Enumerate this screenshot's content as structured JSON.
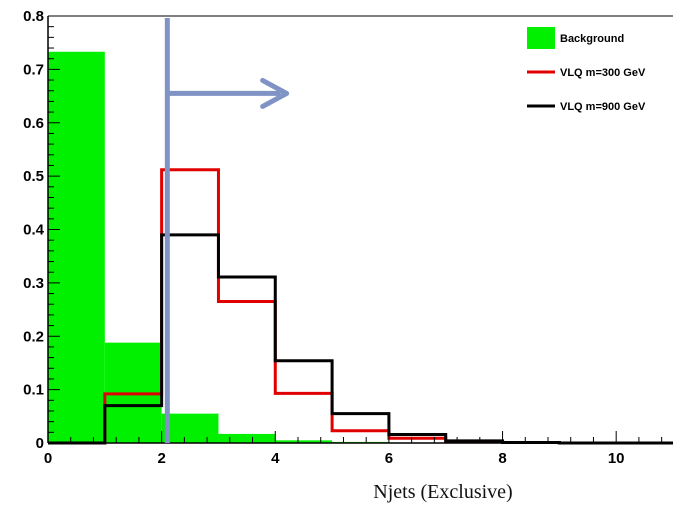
{
  "chart_data": {
    "type": "bar",
    "title": "",
    "xlabel": "Njets (Exclusive)",
    "ylabel": "",
    "xlim": [
      0,
      11
    ],
    "ylim": [
      0,
      0.8
    ],
    "x_ticks": [
      0,
      2,
      4,
      6,
      8,
      10
    ],
    "y_ticks": [
      0,
      0.1,
      0.2,
      0.3,
      0.4,
      0.5,
      0.6,
      0.7,
      0.8
    ],
    "bin_edges": [
      0,
      1,
      2,
      3,
      4,
      5,
      6,
      7,
      8,
      9,
      10,
      11
    ],
    "legend_position": "top-right",
    "series": [
      {
        "name": "Background",
        "style": "filled",
        "color": "#00f000",
        "values": [
          0.733,
          0.188,
          0.055,
          0.017,
          0.005,
          0.002,
          0.001,
          0.0,
          0.0,
          0.0,
          0.0
        ]
      },
      {
        "name": "VLQ m=300 GeV",
        "style": "step",
        "color": "#e00000",
        "values": [
          0.0,
          0.092,
          0.512,
          0.265,
          0.093,
          0.023,
          0.009,
          0.003,
          0.001,
          0.0,
          0.0
        ]
      },
      {
        "name": "VLQ m=900 GeV",
        "style": "step",
        "color": "#000000",
        "values": [
          0.0,
          0.07,
          0.39,
          0.311,
          0.154,
          0.055,
          0.016,
          0.004,
          0.001,
          0.0,
          0.0
        ]
      }
    ],
    "annotations": [
      {
        "type": "cut-line",
        "x": 2.1,
        "color": "#7f93c4"
      },
      {
        "type": "arrow",
        "direction": "right",
        "from_x": 2.1,
        "to_x": 4.2,
        "y": 0.655,
        "color": "#7f93c4"
      }
    ]
  }
}
